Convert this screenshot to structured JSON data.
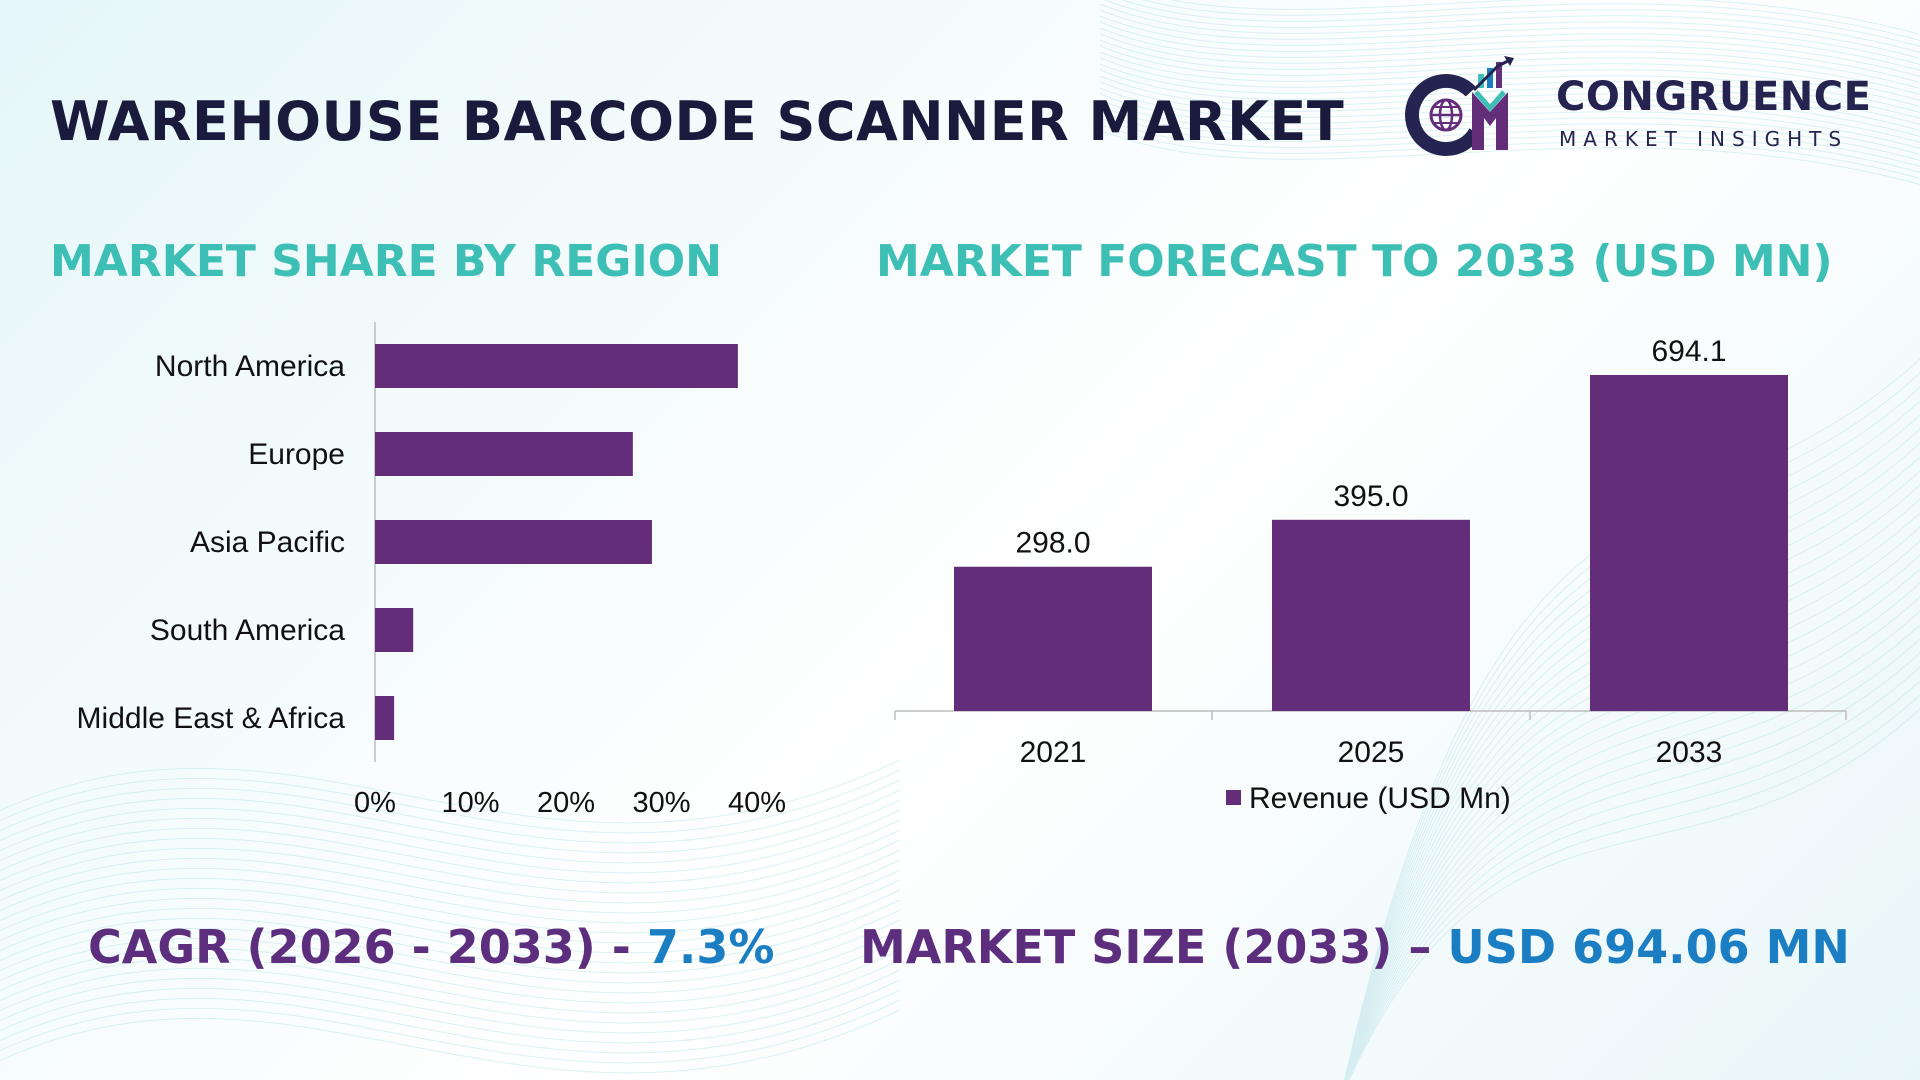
{
  "header": {
    "title": "WAREHOUSE BARCODE SCANNER MARKET",
    "logo_name": "CONGRUENCE",
    "logo_sub": "MARKET INSIGHTS",
    "logo_icon": "cm-logo-icon"
  },
  "sections": {
    "left_title": "MARKET SHARE BY REGION",
    "right_title": "MARKET FORECAST TO 2033 (USD MN)"
  },
  "footer": {
    "cagr_label": "CAGR (2026 - 2033) - ",
    "cagr_value": "7.3%",
    "size_label": "MARKET SIZE (2033) – ",
    "size_value": "USD 694.06 MN"
  },
  "colors": {
    "bar": "#642d7a",
    "title_teal": "#3ebfb5",
    "dark_navy": "#1a1a3d",
    "footer_purple": "#5d2e7e",
    "footer_blue": "#1b7ec2"
  },
  "chart_data": [
    {
      "type": "bar",
      "orientation": "horizontal",
      "categories": [
        "North America",
        "Europe",
        "Asia Pacific",
        "South America",
        "Middle East & Africa"
      ],
      "values": [
        38,
        27,
        29,
        4,
        2
      ],
      "unit": "%",
      "xlim": [
        0,
        40
      ],
      "xticks": [
        "0%",
        "10%",
        "20%",
        "30%",
        "40%"
      ],
      "title": "MARKET SHARE BY REGION"
    },
    {
      "type": "bar",
      "orientation": "vertical",
      "categories": [
        "2021",
        "2025",
        "2033"
      ],
      "values": [
        298.0,
        395.0,
        694.1
      ],
      "data_labels": [
        "298.0",
        "395.0",
        "694.1"
      ],
      "series": [
        {
          "name": "Revenue (USD Mn)",
          "values": [
            298.0,
            395.0,
            694.1
          ]
        }
      ],
      "legend": "bottom",
      "ylim": [
        0,
        750
      ],
      "title": "MARKET FORECAST TO 2033 (USD MN)"
    }
  ]
}
